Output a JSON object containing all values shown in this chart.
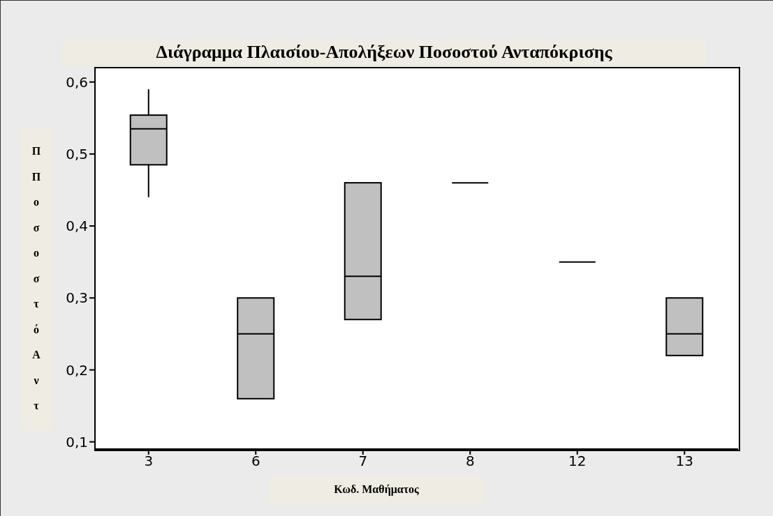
{
  "chart_data": {
    "type": "box",
    "title": "Διάγραμμα Πλαισίου-Απολήξεων Ποσοστού Ανταπόκρισης",
    "xlabel": "Κωδ. Μαθήματος",
    "ylabel": "ΠΠοσοστόΑντ",
    "categories": [
      "3",
      "6",
      "7",
      "8",
      "12",
      "13"
    ],
    "boxes": [
      {
        "low": 0.44,
        "q1": 0.485,
        "median": 0.535,
        "q3": 0.554,
        "high": 0.59
      },
      {
        "low": 0.16,
        "q1": 0.16,
        "median": 0.25,
        "q3": 0.3,
        "high": 0.3
      },
      {
        "low": 0.27,
        "q1": 0.27,
        "median": 0.33,
        "q3": 0.46,
        "high": 0.46
      },
      {
        "low": 0.46,
        "q1": 0.46,
        "median": 0.46,
        "q3": 0.46,
        "high": 0.46
      },
      {
        "low": 0.35,
        "q1": 0.35,
        "median": 0.35,
        "q3": 0.35,
        "high": 0.35
      },
      {
        "low": 0.22,
        "q1": 0.22,
        "median": 0.25,
        "q3": 0.3,
        "high": 0.3
      }
    ],
    "colors": [
      "#c0c0c0",
      "#c0c0c0",
      "#c0c0c0",
      "#000000",
      "#000000",
      "#c0c0c0"
    ],
    "ylim": [
      0.09,
      0.62
    ],
    "yticks": [
      {
        "value": 0.1,
        "label": "0,1"
      },
      {
        "value": 0.2,
        "label": "0,2"
      },
      {
        "value": 0.3,
        "label": "0,3"
      },
      {
        "value": 0.4,
        "label": "0,4"
      },
      {
        "value": 0.5,
        "label": "0,5"
      },
      {
        "value": 0.6,
        "label": "0,6"
      }
    ],
    "grid": false
  }
}
